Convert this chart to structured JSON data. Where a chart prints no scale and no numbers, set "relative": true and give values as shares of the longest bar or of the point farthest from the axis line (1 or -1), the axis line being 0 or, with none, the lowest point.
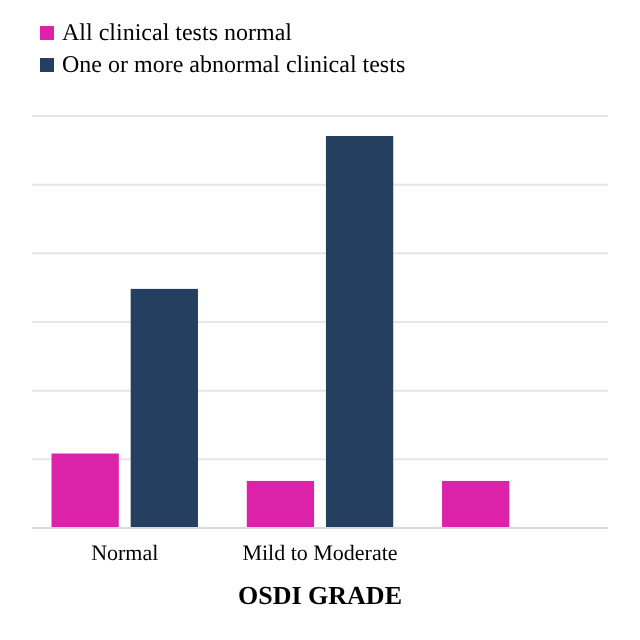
{
  "chart_data": {
    "type": "bar",
    "xlabel": "OSDI GRADE",
    "categories": [
      "Normal",
      "Mild to Moderate",
      null
    ],
    "relative": true,
    "grid": "y",
    "legend": "top",
    "series": [
      {
        "name": "All clinical tests normal",
        "color": "#dd22aa",
        "values": [
          0.19,
          0.12,
          0.12
        ]
      },
      {
        "name": "One or more abnormal clinical tests",
        "color": "#243f5f",
        "values": [
          0.61,
          1,
          null
        ]
      }
    ]
  }
}
